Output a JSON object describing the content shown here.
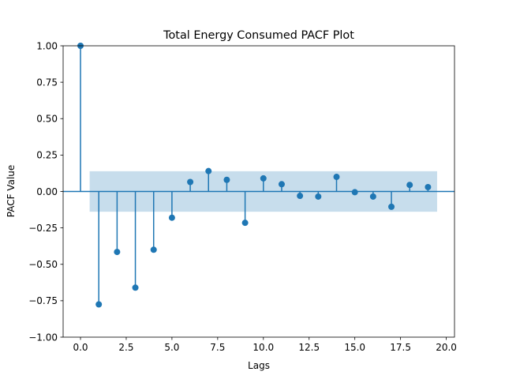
{
  "chart_data": {
    "type": "stem",
    "title": "Total Energy Consumed PACF Plot",
    "xlabel": "Lags",
    "ylabel": "PACF Value",
    "xlim": [
      -0.95,
      20.45
    ],
    "ylim": [
      -1.0,
      1.0
    ],
    "xticks": [
      0.0,
      2.5,
      5.0,
      7.5,
      10.0,
      12.5,
      15.0,
      17.5,
      20.0
    ],
    "xtick_labels": [
      "0.0",
      "2.5",
      "5.0",
      "7.5",
      "10.0",
      "12.5",
      "15.0",
      "17.5",
      "20.0"
    ],
    "yticks": [
      -1.0,
      -0.75,
      -0.5,
      -0.25,
      0.0,
      0.25,
      0.5,
      0.75,
      1.0
    ],
    "ytick_labels": [
      "−1.00",
      "−0.75",
      "−0.50",
      "−0.25",
      "0.00",
      "0.25",
      "0.50",
      "0.75",
      "1.00"
    ],
    "grid": false,
    "confidence_band": {
      "x_range": [
        0.5,
        19.5
      ],
      "lower": -0.139,
      "upper": 0.139
    },
    "x": [
      0,
      1,
      2,
      3,
      4,
      5,
      6,
      7,
      8,
      9,
      10,
      11,
      12,
      13,
      14,
      15,
      16,
      17,
      18,
      19
    ],
    "values": [
      1.0,
      -0.775,
      -0.415,
      -0.66,
      -0.4,
      -0.18,
      0.065,
      0.14,
      0.08,
      -0.215,
      0.09,
      0.05,
      -0.03,
      -0.035,
      0.1,
      -0.005,
      -0.035,
      -0.105,
      0.045,
      0.03
    ],
    "colors": {
      "stem": "#1f77b4",
      "marker": "#1f77b4",
      "baseline": "#1f77b4",
      "band": "#1f77b4",
      "axes": "#000000"
    }
  }
}
